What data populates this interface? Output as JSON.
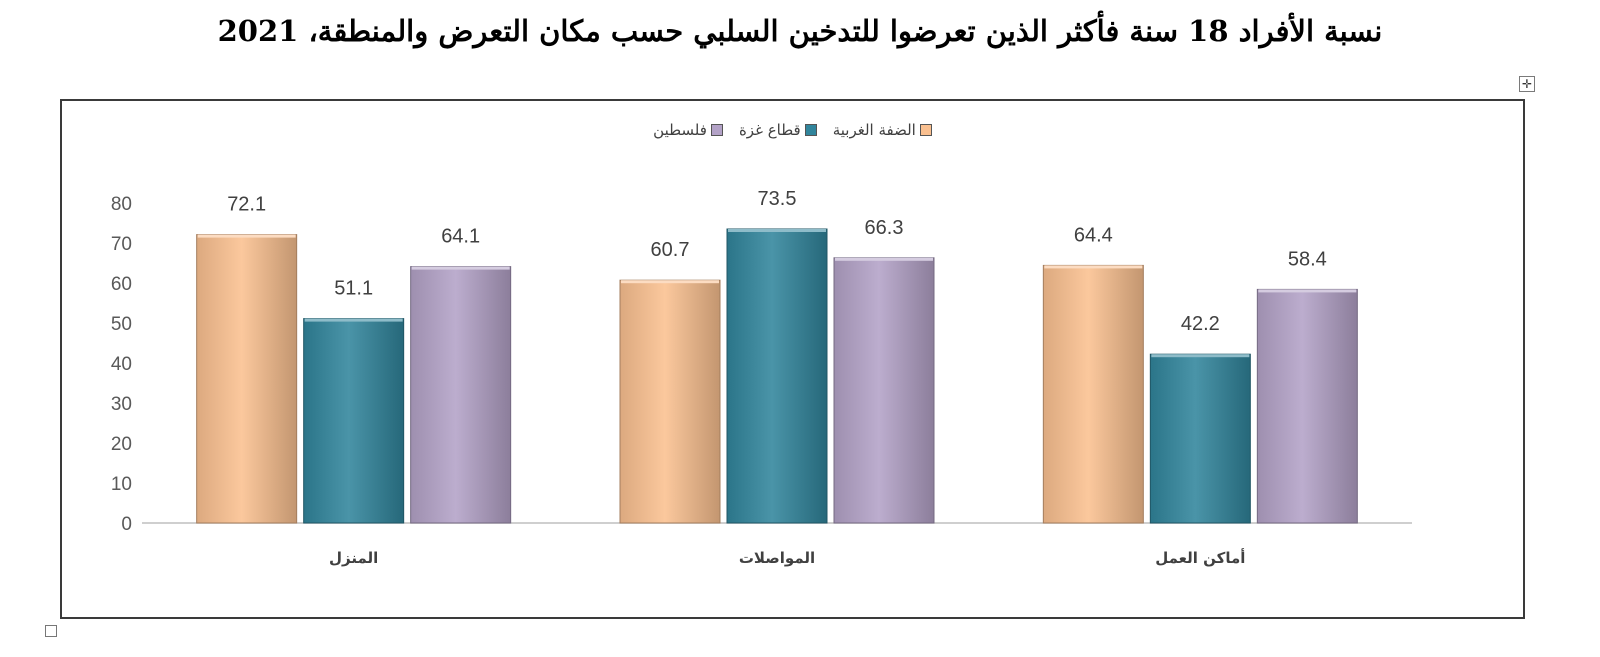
{
  "page": {
    "title": "نسبة الأفراد 18 سنة فأكثر الذين تعرضوا للتدخين السلبي حسب مكان التعرض والمنطقة، 2021"
  },
  "controls": {
    "move_icon": "move-icon",
    "move_glyph": "✛",
    "resize_icon": "resize-handle-icon"
  },
  "chart_data": {
    "type": "bar",
    "title": "نسبة الأفراد 18 سنة فأكثر الذين تعرضوا للتدخين السلبي حسب مكان التعرض والمنطقة، 2021",
    "categories": [
      "المنزل",
      "المواصلات",
      "أماكن العمل"
    ],
    "series": [
      {
        "name": "الضفة الغربية",
        "color": "#fac090",
        "values": [
          72.1,
          60.7,
          64.4
        ]
      },
      {
        "name": "قطاع غزة",
        "color": "#31859c",
        "values": [
          51.1,
          73.5,
          42.2
        ]
      },
      {
        "name": "فلسطين",
        "color": "#b3a2c7",
        "values": [
          64.1,
          66.3,
          58.4
        ]
      }
    ],
    "yticks": [
      0,
      10,
      20,
      30,
      40,
      50,
      60,
      70,
      80
    ],
    "ylim": [
      0,
      80
    ],
    "xlabel": "",
    "ylabel": "",
    "grid": false,
    "legend_position": "top-center",
    "data_labels": true
  }
}
